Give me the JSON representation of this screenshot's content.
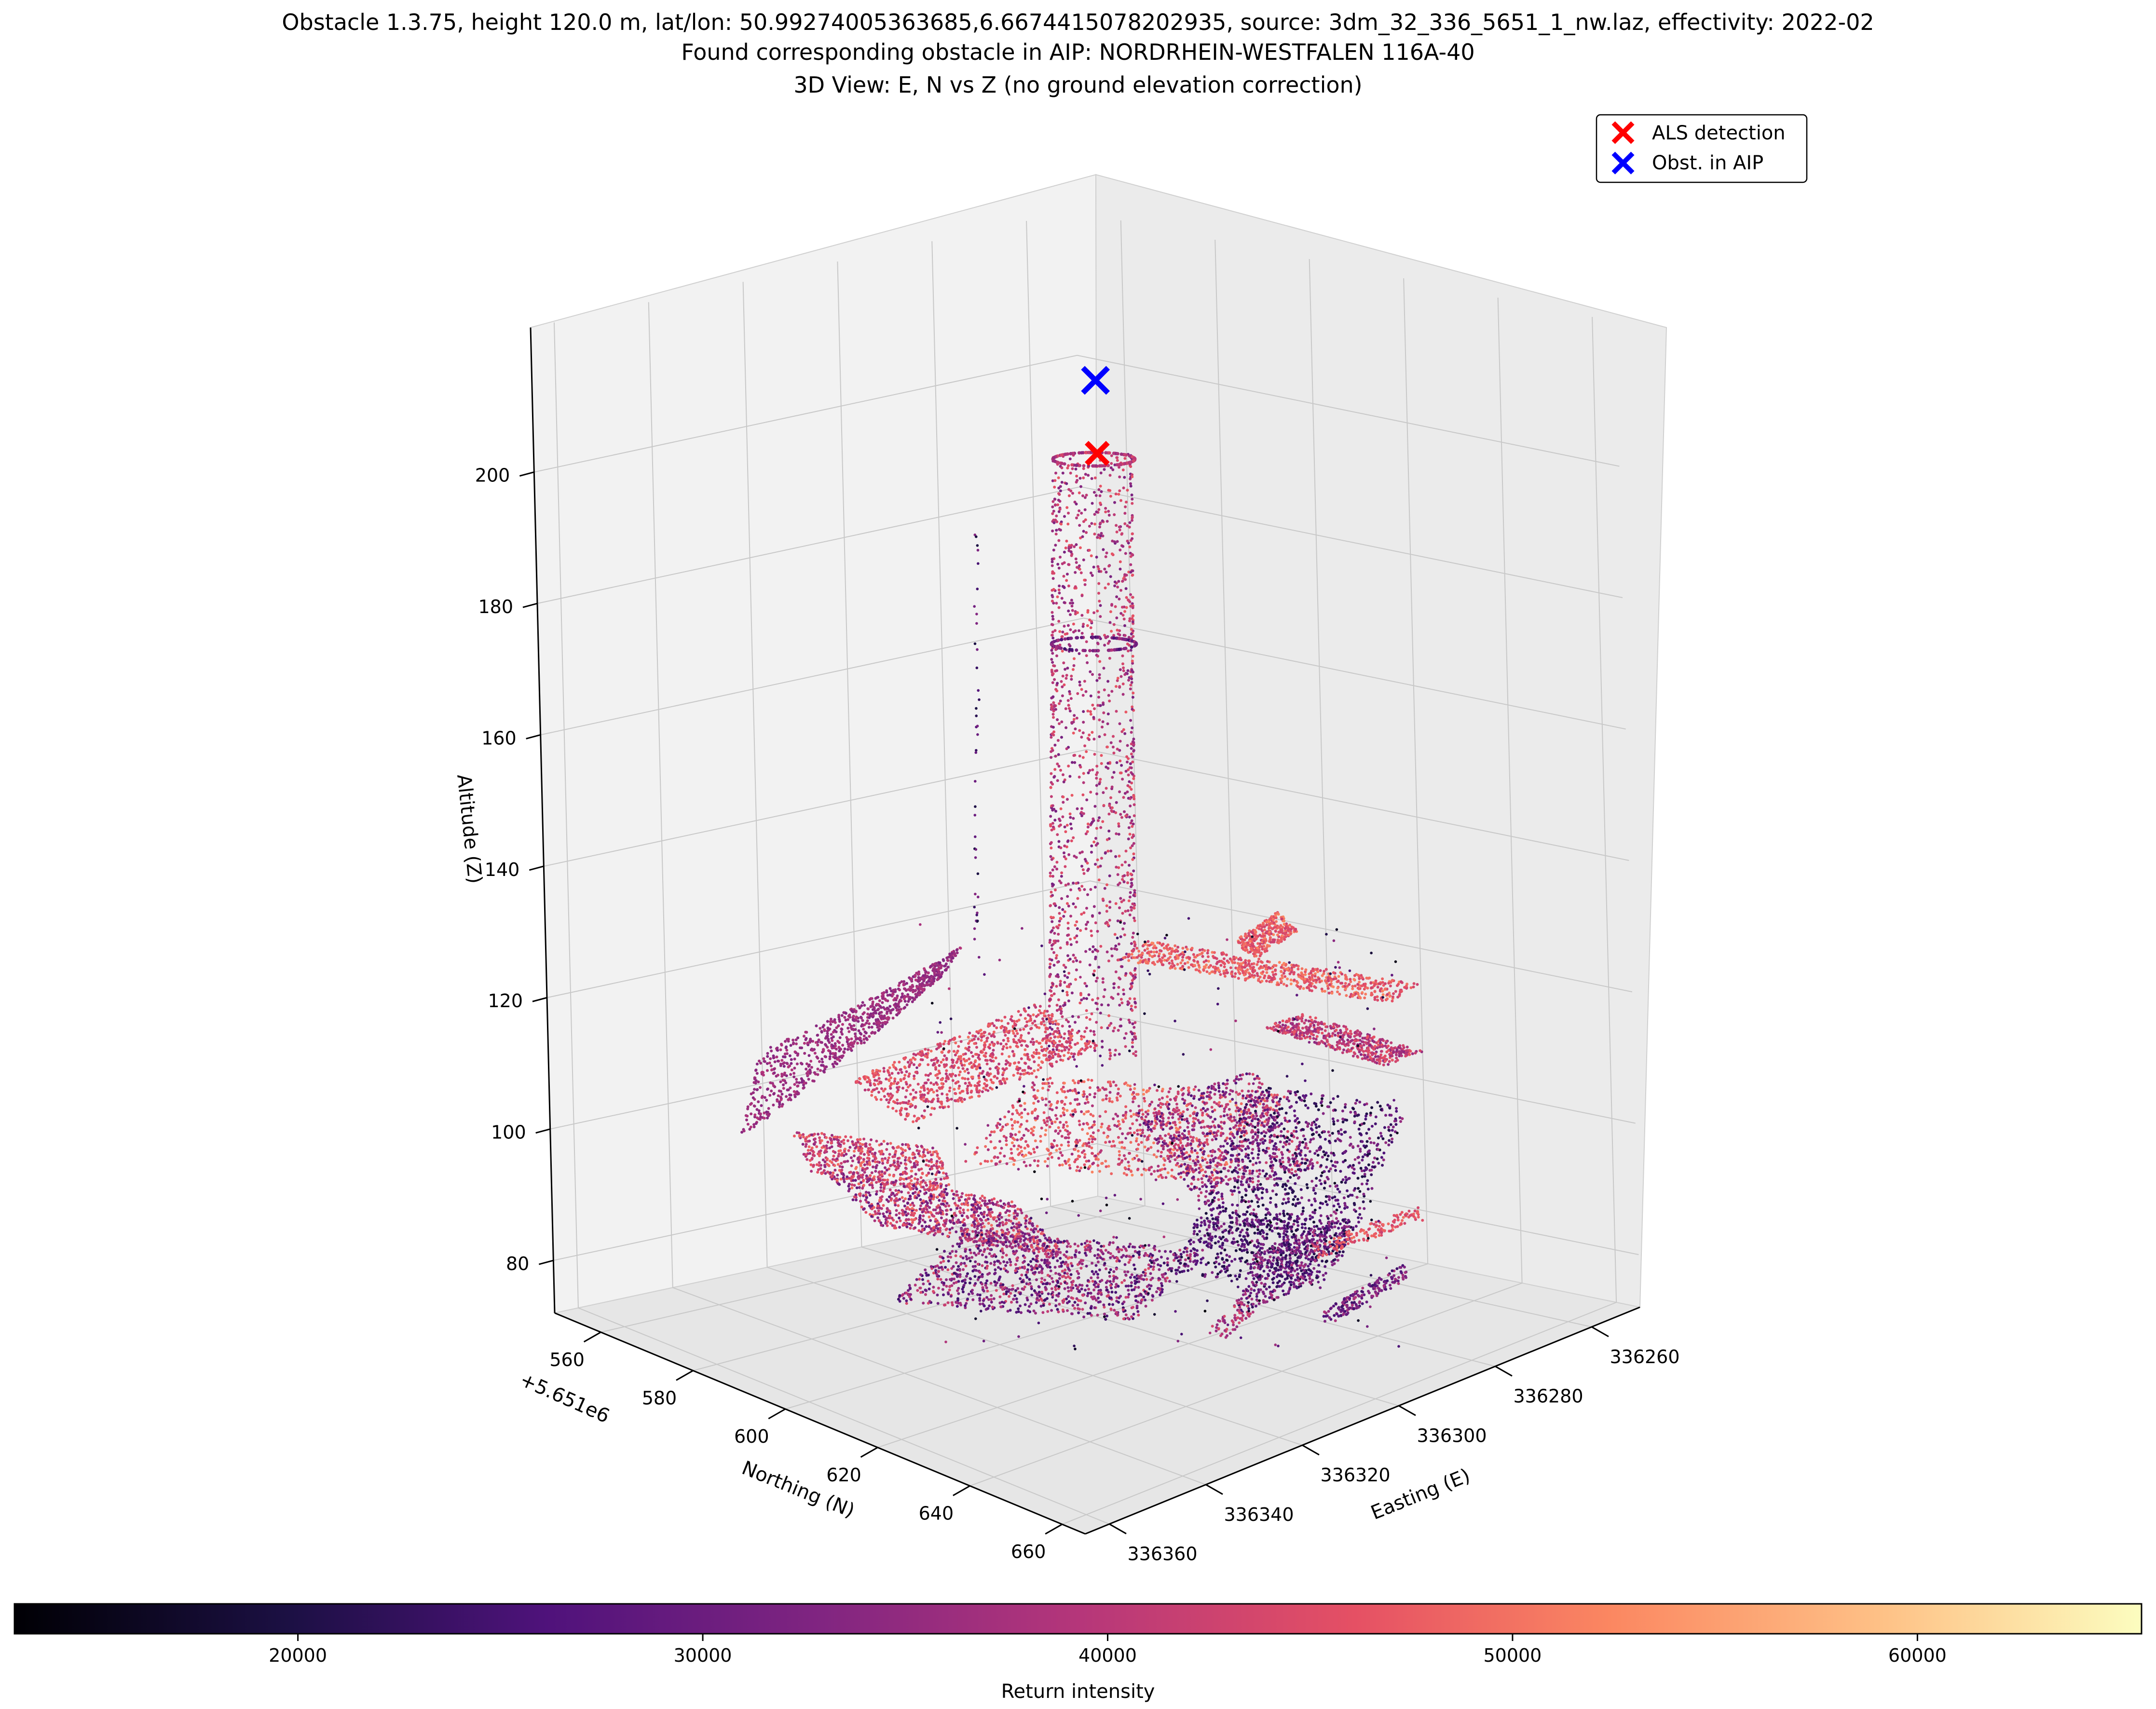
{
  "titles": [
    "Obstacle 1.3.75, height 120.0 m, lat/lon: 50.99274005363685,6.6674415078202935, source: 3dm_32_336_5651_1_nw.laz, effectivity: 2022-02",
    "Found corresponding obstacle in AIP: NORDRHEIN-WESTFALEN 116A-40",
    "3D View: E, N vs Z (no ground elevation correction)"
  ],
  "legend": [
    {
      "label": "ALS detection",
      "color": "#ff0000",
      "marker": "x"
    },
    {
      "label": "Obst. in AIP",
      "color": "#0000ff",
      "marker": "x"
    }
  ],
  "colorbar": {
    "label": "Return intensity",
    "ticks": [
      "20000",
      "30000",
      "40000",
      "50000",
      "60000"
    ],
    "range": [
      13000,
      65535
    ],
    "colormap": "magma"
  },
  "chart_data": {
    "type": "scatter3d",
    "x_axis": {
      "label": "Easting (E)",
      "ticks": [
        "336260",
        "336280",
        "336300",
        "336320",
        "336340",
        "336360"
      ],
      "range": [
        336250,
        336365
      ]
    },
    "y_axis": {
      "label": "Northing (N)",
      "offset_label": "+5.651e6",
      "ticks": [
        "560",
        "580",
        "600",
        "620",
        "640",
        "660"
      ],
      "range": [
        550,
        665
      ]
    },
    "z_axis": {
      "label": "Altitude (Z)",
      "ticks": [
        "80",
        "100",
        "120",
        "140",
        "160",
        "180",
        "200"
      ],
      "range": [
        72,
        222
      ]
    },
    "grid": true,
    "legend_position": "top-right",
    "color_by": "Return intensity",
    "markers": [
      {
        "name": "ALS detection",
        "easting": 336300,
        "northing": 605,
        "altitude": 203
      },
      {
        "name": "Obst. in AIP",
        "easting": 336300,
        "northing": 605,
        "altitude": 214
      }
    ]
  }
}
